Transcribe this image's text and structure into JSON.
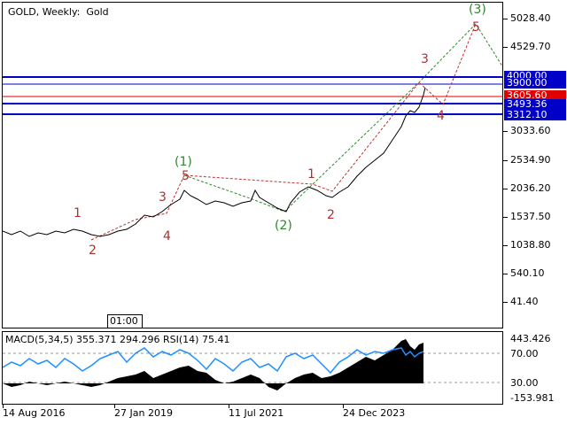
{
  "chart": {
    "title": "GOLD, Weekly:  Gold",
    "time_box": "01:00",
    "price_labels": [
      "5028.40",
      "4529.70",
      "3033.60",
      "2534.90",
      "2036.20",
      "1537.50",
      "1038.80",
      "540.10",
      "41.40"
    ],
    "level_tags": [
      {
        "text": "4000.00",
        "color": "blue"
      },
      {
        "text": "3900.00",
        "color": "blue"
      },
      {
        "text": "3605.60",
        "color": "red"
      },
      {
        "text": "3493.36",
        "color": "blue"
      },
      {
        "text": "3312.10",
        "color": "blue"
      }
    ],
    "wave_labels": [
      {
        "text": "1",
        "color": "red"
      },
      {
        "text": "2",
        "color": "red"
      },
      {
        "text": "3",
        "color": "red"
      },
      {
        "text": "4",
        "color": "red"
      },
      {
        "text": "5",
        "color": "red"
      },
      {
        "text": "(1)",
        "color": "green"
      },
      {
        "text": "(2)",
        "color": "green"
      },
      {
        "text": "1",
        "color": "red"
      },
      {
        "text": "2",
        "color": "red"
      },
      {
        "text": "3",
        "color": "red"
      },
      {
        "text": "4",
        "color": "red"
      },
      {
        "text": "5",
        "color": "red"
      },
      {
        "text": "(3)",
        "color": "green"
      }
    ]
  },
  "indicator": {
    "title": "MACD(5,34,5) 355.371 294.296 RSI(14) 75.41",
    "labels": [
      "443.426",
      "70.00",
      "30.00",
      "-153.981"
    ]
  },
  "time_axis": [
    "14 Aug 2016",
    "27 Jan 2019",
    "11 Jul 2021",
    "24 Dec 2023"
  ],
  "colors": {
    "price_line": "#000000",
    "support_line": "#0000c8",
    "resistance_line": "#e00000",
    "wave_red": "#b03030",
    "wave_green": "#2a8a2a",
    "rsi_line": "#1e90ff",
    "macd_fill": "#000000"
  }
}
